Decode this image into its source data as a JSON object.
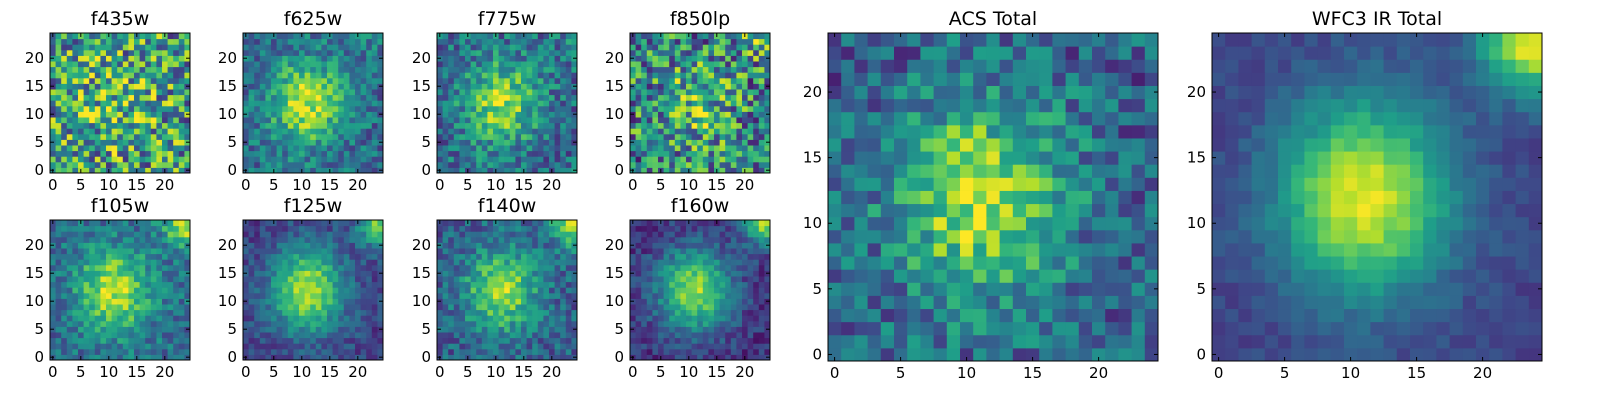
{
  "figure": {
    "panels": [
      {
        "id": "f435w",
        "title": "f435w",
        "seed": 435,
        "noise": 0.85,
        "blob": 0.15,
        "corner": 0.0,
        "base": 0.55
      },
      {
        "id": "f625w",
        "title": "f625w",
        "seed": 625,
        "noise": 0.4,
        "blob": 0.55,
        "corner": 0.1,
        "base": 0.35
      },
      {
        "id": "f775w",
        "title": "f775w",
        "seed": 775,
        "noise": 0.45,
        "blob": 0.5,
        "corner": 0.1,
        "base": 0.35
      },
      {
        "id": "f850lp",
        "title": "f850lp",
        "seed": 850,
        "noise": 0.8,
        "blob": 0.25,
        "corner": 0.3,
        "base": 0.45
      },
      {
        "id": "f105w",
        "title": "f105w",
        "seed": 105,
        "noise": 0.35,
        "blob": 0.55,
        "corner": 0.6,
        "base": 0.35
      },
      {
        "id": "f125w",
        "title": "f125w",
        "seed": 125,
        "noise": 0.25,
        "blob": 0.7,
        "corner": 0.6,
        "base": 0.2
      },
      {
        "id": "f140w",
        "title": "f140w",
        "seed": 140,
        "noise": 0.35,
        "blob": 0.55,
        "corner": 0.6,
        "base": 0.3
      },
      {
        "id": "f160w",
        "title": "f160w",
        "seed": 160,
        "noise": 0.25,
        "blob": 0.7,
        "corner": 0.7,
        "base": 0.15
      },
      {
        "id": "acs-total",
        "title": "ACS Total",
        "seed": 999,
        "noise": 0.45,
        "blob": 0.6,
        "corner": 0.0,
        "base": 0.3
      },
      {
        "id": "wfc3-total",
        "title": "WFC3 IR Total",
        "seed": 333,
        "noise": 0.12,
        "blob": 0.75,
        "corner": 0.8,
        "base": 0.2
      }
    ]
  },
  "chart_data": [
    {
      "type": "heatmap",
      "title": "f435w",
      "xlim": [
        0,
        24
      ],
      "ylim": [
        0,
        24
      ],
      "xticks": [
        "0",
        "5",
        "10",
        "15",
        "20"
      ],
      "yticks": [
        "0",
        "5",
        "10",
        "15",
        "20"
      ],
      "colormap": "viridis"
    },
    {
      "type": "heatmap",
      "title": "f625w",
      "xlim": [
        0,
        24
      ],
      "ylim": [
        0,
        24
      ],
      "xticks": [
        "0",
        "5",
        "10",
        "15",
        "20"
      ],
      "yticks": [
        "0",
        "5",
        "10",
        "15",
        "20"
      ],
      "colormap": "viridis"
    },
    {
      "type": "heatmap",
      "title": "f775w",
      "xlim": [
        0,
        24
      ],
      "ylim": [
        0,
        24
      ],
      "xticks": [
        "0",
        "5",
        "10",
        "15",
        "20"
      ],
      "yticks": [
        "0",
        "5",
        "10",
        "15",
        "20"
      ],
      "colormap": "viridis"
    },
    {
      "type": "heatmap",
      "title": "f850lp",
      "xlim": [
        0,
        24
      ],
      "ylim": [
        0,
        24
      ],
      "xticks": [
        "0",
        "5",
        "10",
        "15",
        "20"
      ],
      "yticks": [
        "0",
        "5",
        "10",
        "15",
        "20"
      ],
      "colormap": "viridis"
    },
    {
      "type": "heatmap",
      "title": "f105w",
      "xlim": [
        0,
        24
      ],
      "ylim": [
        0,
        24
      ],
      "xticks": [
        "0",
        "5",
        "10",
        "15",
        "20"
      ],
      "yticks": [
        "0",
        "5",
        "10",
        "15",
        "20"
      ],
      "colormap": "viridis"
    },
    {
      "type": "heatmap",
      "title": "f125w",
      "xlim": [
        0,
        24
      ],
      "ylim": [
        0,
        24
      ],
      "xticks": [
        "0",
        "5",
        "10",
        "15",
        "20"
      ],
      "yticks": [
        "0",
        "5",
        "10",
        "15",
        "20"
      ],
      "colormap": "viridis"
    },
    {
      "type": "heatmap",
      "title": "f140w",
      "xlim": [
        0,
        24
      ],
      "ylim": [
        0,
        24
      ],
      "xticks": [
        "0",
        "5",
        "10",
        "15",
        "20"
      ],
      "yticks": [
        "0",
        "5",
        "10",
        "15",
        "20"
      ],
      "colormap": "viridis"
    },
    {
      "type": "heatmap",
      "title": "f160w",
      "xlim": [
        0,
        24
      ],
      "ylim": [
        0,
        24
      ],
      "xticks": [
        "0",
        "5",
        "10",
        "15",
        "20"
      ],
      "yticks": [
        "0",
        "5",
        "10",
        "15",
        "20"
      ],
      "colormap": "viridis"
    },
    {
      "type": "heatmap",
      "title": "ACS Total",
      "xlim": [
        0,
        24
      ],
      "ylim": [
        0,
        24
      ],
      "xticks": [
        "0",
        "5",
        "10",
        "15",
        "20"
      ],
      "yticks": [
        "0",
        "5",
        "10",
        "15",
        "20"
      ],
      "colormap": "viridis"
    },
    {
      "type": "heatmap",
      "title": "WFC3 IR Total",
      "xlim": [
        0,
        24
      ],
      "ylim": [
        0,
        24
      ],
      "xticks": [
        "0",
        "5",
        "10",
        "15",
        "20"
      ],
      "yticks": [
        "0",
        "5",
        "10",
        "15",
        "20"
      ],
      "colormap": "viridis"
    }
  ],
  "colors": {
    "viridis": [
      "#440154",
      "#482878",
      "#3e4989",
      "#31688e",
      "#26828e",
      "#1f9e89",
      "#35b779",
      "#6ece58",
      "#b5de2b",
      "#fde725"
    ],
    "axis": "#000000",
    "background": "#ffffff"
  }
}
